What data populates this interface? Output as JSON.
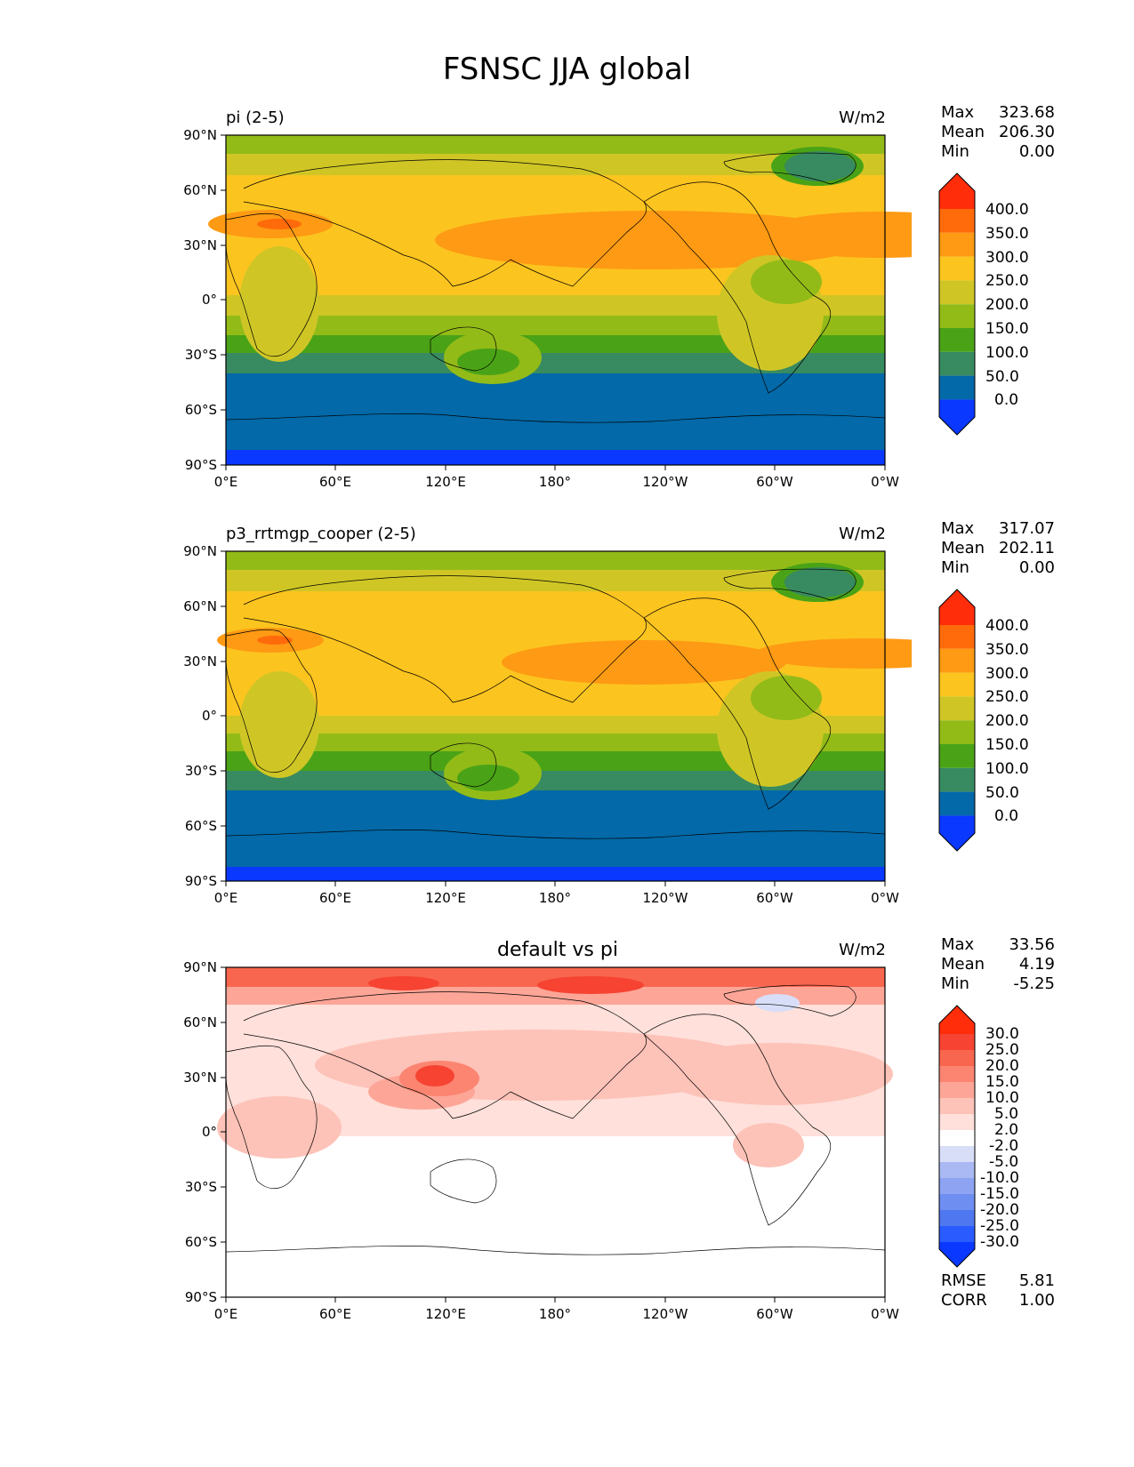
{
  "title": "FSNSC JJA global",
  "lat_ticks": [
    "90°N",
    "60°N",
    "30°N",
    "0°",
    "30°S",
    "60°S",
    "90°S"
  ],
  "lon_ticks": [
    "0°E",
    "60°E",
    "120°E",
    "180°",
    "120°W",
    "60°W",
    "0°W"
  ],
  "colors": {
    "abs_levels": [
      "#0a38ff",
      "#0369a8",
      "#388a60",
      "#4aa316",
      "#93bb18",
      "#cfc626",
      "#fcc41f",
      "#fe9a13",
      "#ff6a0b",
      "#ff2d0a"
    ],
    "diff_levels": [
      "#0a38ff",
      "#2a5bff",
      "#4f78f0",
      "#6f8ef2",
      "#8ea3f2",
      "#aab8f4",
      "#d8def8",
      "#ffffff",
      "#ffe0da",
      "#fdc2b8",
      "#fda697",
      "#fb8571",
      "#f9664f",
      "#f64332",
      "#ff2d0a"
    ]
  },
  "panels": [
    {
      "label": "pi (2-5)",
      "center_title": "",
      "units": "W/m2",
      "stats": [
        {
          "name": "Max",
          "value": "323.68"
        },
        {
          "name": "Mean",
          "value": "206.30"
        },
        {
          "name": "Min",
          "value": "0.00"
        }
      ],
      "colorbar": [
        "400.0",
        "350.0",
        "300.0",
        "250.0",
        "200.0",
        "150.0",
        "100.0",
        "50.0",
        "0.0"
      ],
      "footer_stats": []
    },
    {
      "label": "p3_rrtmgp_cooper (2-5)",
      "center_title": "",
      "units": "W/m2",
      "stats": [
        {
          "name": "Max",
          "value": "317.07"
        },
        {
          "name": "Mean",
          "value": "202.11"
        },
        {
          "name": "Min",
          "value": "0.00"
        }
      ],
      "colorbar": [
        "400.0",
        "350.0",
        "300.0",
        "250.0",
        "200.0",
        "150.0",
        "100.0",
        "50.0",
        "0.0"
      ],
      "footer_stats": []
    },
    {
      "label": "",
      "center_title": "default vs pi",
      "units": "W/m2",
      "stats": [
        {
          "name": "Max",
          "value": "33.56"
        },
        {
          "name": "Mean",
          "value": "4.19"
        },
        {
          "name": "Min",
          "value": "-5.25"
        }
      ],
      "colorbar": [
        "30.0",
        "25.0",
        "20.0",
        "15.0",
        "10.0",
        "5.0",
        "2.0",
        "-2.0",
        "-5.0",
        "-10.0",
        "-15.0",
        "-20.0",
        "-25.0",
        "-30.0"
      ],
      "footer_stats": [
        {
          "name": "RMSE",
          "value": "5.81"
        },
        {
          "name": "CORR",
          "value": "1.00"
        }
      ]
    }
  ]
}
